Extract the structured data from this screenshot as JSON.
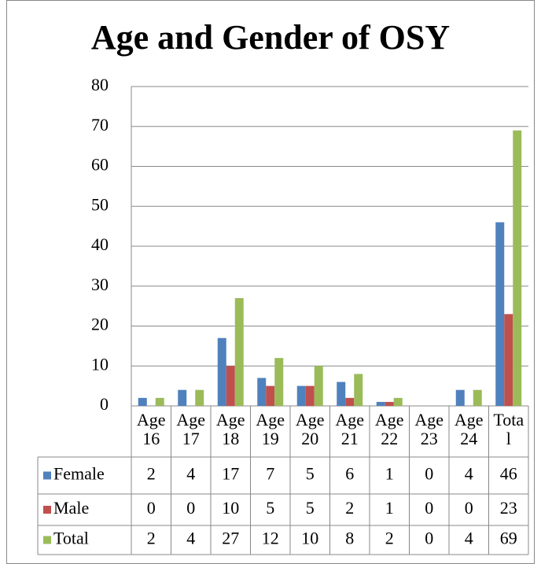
{
  "chart_data": {
    "type": "bar",
    "title": "Age and Gender of OSY",
    "categories": [
      "Age 16",
      "Age 17",
      "Age 18",
      "Age 19",
      "Age 20",
      "Age 21",
      "Age 22",
      "Age 23",
      "Age 24",
      "Total"
    ],
    "series": [
      {
        "name": "Female",
        "color": "#4f81bd",
        "values": [
          2,
          4,
          17,
          7,
          5,
          6,
          1,
          0,
          4,
          46
        ]
      },
      {
        "name": "Male",
        "color": "#c0504d",
        "values": [
          0,
          0,
          10,
          5,
          5,
          2,
          1,
          0,
          0,
          23
        ]
      },
      {
        "name": "Total",
        "color": "#9bbb59",
        "values": [
          2,
          4,
          27,
          12,
          10,
          8,
          2,
          0,
          4,
          69
        ]
      }
    ],
    "ylim": [
      0,
      80
    ],
    "yticks": [
      0,
      10,
      20,
      30,
      40,
      50,
      60,
      70,
      80
    ],
    "grid": true,
    "data_table": true
  }
}
